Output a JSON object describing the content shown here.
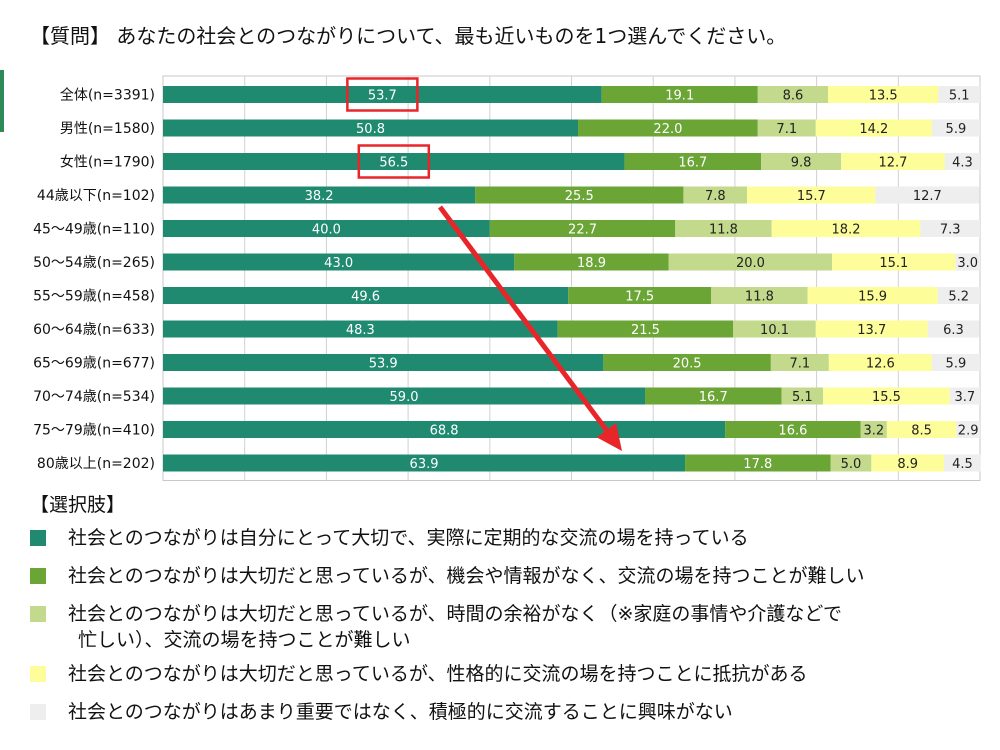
{
  "title": "【質問】 あなたの社会とのつながりについて、最も近いものを1つ選んでください。",
  "chart_data": {
    "type": "bar",
    "orientation": "horizontal",
    "stacked": true,
    "percent": true,
    "xlim": [
      0,
      100
    ],
    "grid": true,
    "categories": [
      "全体(n=3391)",
      "男性(n=1580)",
      "女性(n=1790)",
      "44歳以下(n=102)",
      "45～49歳(n=110)",
      "50～54歳(n=265)",
      "55～59歳(n=458)",
      "60～64歳(n=633)",
      "65～69歳(n=677)",
      "70～74歳(n=534)",
      "75～79歳(n=410)",
      "80歳以上(n=202)"
    ],
    "series": [
      {
        "name": "社会とのつながりは自分にとって大切で、実際に定期的な交流の場を持っている",
        "color": "#1f8a70",
        "values": [
          53.7,
          50.8,
          56.5,
          38.2,
          40.0,
          43.0,
          49.6,
          48.3,
          53.9,
          59.0,
          68.8,
          63.9
        ]
      },
      {
        "name": "社会とのつながりは大切だと思っているが、機会や情報がなく、交流の場を持つことが難しい",
        "color": "#6aa536",
        "values": [
          19.1,
          22.0,
          16.7,
          25.5,
          22.7,
          18.9,
          17.5,
          21.5,
          20.5,
          16.7,
          16.6,
          17.8
        ]
      },
      {
        "name": "社会とのつながりは大切だと思っているが、時間の余裕がなく（※家庭の事情や介護などで忙しい）、交流の場を持つことが難しい",
        "color": "#c3d98b",
        "values": [
          8.6,
          7.1,
          9.8,
          7.8,
          11.8,
          20.0,
          11.8,
          10.1,
          7.1,
          5.1,
          3.2,
          5.0
        ]
      },
      {
        "name": "社会とのつながりは大切だと思っているが、性格的に交流の場を持つことに抵抗がある",
        "color": "#fdfd9a",
        "values": [
          13.5,
          14.2,
          12.7,
          15.7,
          18.2,
          15.1,
          15.9,
          13.7,
          12.6,
          15.5,
          8.5,
          8.9
        ]
      },
      {
        "name": "社会とのつながりはあまり重要ではなく、積極的に交流することに興味がない",
        "color": "#eeeeee",
        "values": [
          5.1,
          5.9,
          4.3,
          12.7,
          7.3,
          3.0,
          5.2,
          6.3,
          5.9,
          3.7,
          2.9,
          4.5
        ]
      }
    ],
    "highlights": [
      {
        "category_index": 0,
        "series_index": 0
      },
      {
        "category_index": 2,
        "series_index": 0
      }
    ],
    "trend_arrow": {
      "from_category_index": 3,
      "to_category_index": 11,
      "color": "#e8262a"
    }
  },
  "legend_title": "【選択肢】",
  "legend": [
    {
      "color": "#1f8a70",
      "lines": [
        "社会とのつながりは自分にとって大切で、実際に定期的な交流の場を持っている"
      ]
    },
    {
      "color": "#6aa536",
      "lines": [
        "社会とのつながりは大切だと思っているが、機会や情報がなく、交流の場を持つことが難しい"
      ]
    },
    {
      "color": "#c3d98b",
      "lines": [
        "社会とのつながりは大切だと思っているが、時間の余裕がなく（※家庭の事情や介護などで",
        "忙しい）、交流の場を持つことが難しい"
      ]
    },
    {
      "color": "#fdfd9a",
      "lines": [
        "社会とのつながりは大切だと思っているが、性格的に交流の場を持つことに抵抗がある"
      ]
    },
    {
      "color": "#eeeeee",
      "lines": [
        "社会とのつながりはあまり重要ではなく、積極的に交流することに興味がない"
      ]
    }
  ]
}
